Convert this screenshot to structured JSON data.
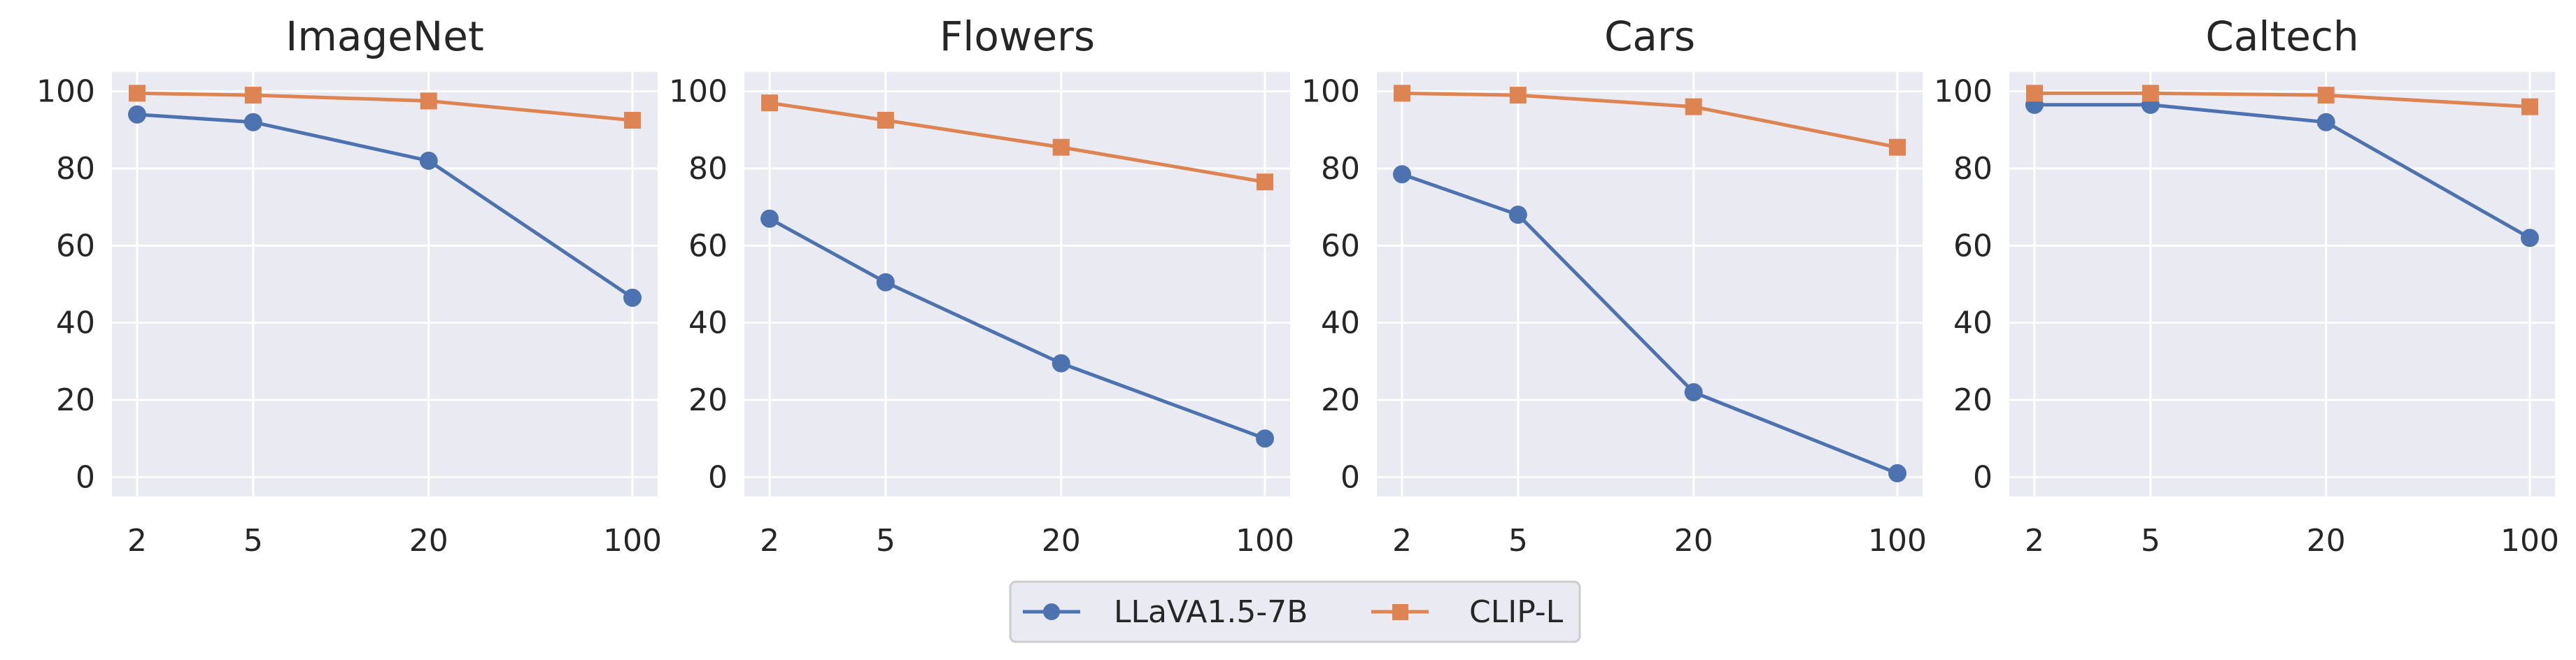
{
  "colors": {
    "background": "#ffffff",
    "axes_face": "#eaeaf2",
    "grid": "#ffffff",
    "text": "#262626",
    "series_llava": "#4c72b0",
    "series_clip": "#dd8452",
    "legend_border": "#cccccc"
  },
  "legend": {
    "placement": "bottom-center",
    "entries": [
      {
        "name": "LLaVA1.5-7B",
        "color": "#4c72b0",
        "marker": "circle"
      },
      {
        "name": "CLIP-L",
        "color": "#dd8452",
        "marker": "square"
      }
    ]
  },
  "chart_data": [
    {
      "type": "line",
      "title": "ImageNet",
      "categories": [
        "2",
        "5",
        "20",
        "100"
      ],
      "ylim": [
        -5,
        105
      ],
      "yticks": [
        "0",
        "20",
        "40",
        "60",
        "80",
        "100"
      ],
      "grid": true,
      "series": [
        {
          "name": "LLaVA1.5-7B",
          "values": [
            94,
            92,
            82,
            46.5
          ]
        },
        {
          "name": "CLIP-L",
          "values": [
            99.5,
            99,
            97.5,
            92.5
          ]
        }
      ]
    },
    {
      "type": "line",
      "title": "Flowers",
      "categories": [
        "2",
        "5",
        "20",
        "100"
      ],
      "ylim": [
        -5,
        105
      ],
      "yticks": [
        "0",
        "20",
        "40",
        "60",
        "80",
        "100"
      ],
      "grid": true,
      "series": [
        {
          "name": "LLaVA1.5-7B",
          "values": [
            67,
            50.5,
            29.5,
            10
          ]
        },
        {
          "name": "CLIP-L",
          "values": [
            97,
            92.5,
            85.5,
            76.5
          ]
        }
      ]
    },
    {
      "type": "line",
      "title": "Cars",
      "categories": [
        "2",
        "5",
        "20",
        "100"
      ],
      "ylim": [
        -5,
        105
      ],
      "yticks": [
        "0",
        "20",
        "40",
        "60",
        "80",
        "100"
      ],
      "grid": true,
      "series": [
        {
          "name": "LLaVA1.5-7B",
          "values": [
            78.5,
            68,
            22,
            1
          ]
        },
        {
          "name": "CLIP-L",
          "values": [
            99.5,
            99,
            96,
            85.5
          ]
        }
      ]
    },
    {
      "type": "line",
      "title": "Caltech",
      "categories": [
        "2",
        "5",
        "20",
        "100"
      ],
      "ylim": [
        -5,
        105
      ],
      "yticks": [
        "0",
        "20",
        "40",
        "60",
        "80",
        "100"
      ],
      "grid": true,
      "series": [
        {
          "name": "LLaVA1.5-7B",
          "values": [
            96.5,
            96.5,
            92,
            62
          ]
        },
        {
          "name": "CLIP-L",
          "values": [
            99.5,
            99.5,
            99,
            96
          ]
        }
      ]
    }
  ]
}
